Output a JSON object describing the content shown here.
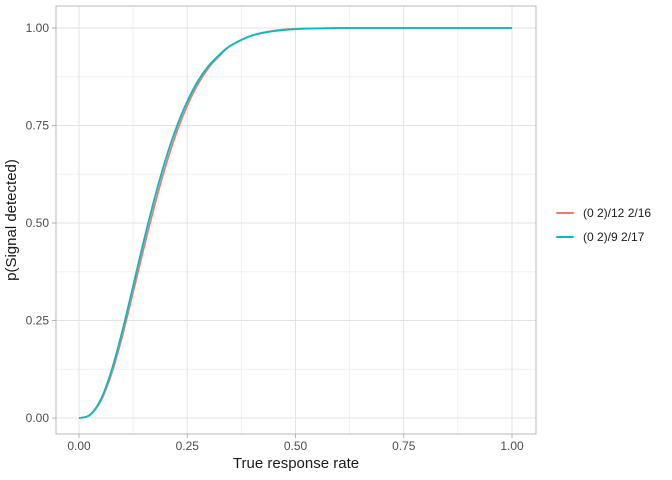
{
  "chart_data": {
    "type": "line",
    "title": "",
    "xlabel": "True response rate",
    "ylabel": "p(Signal detected)",
    "xlim": [
      0,
      1
    ],
    "ylim": [
      0,
      1
    ],
    "grid": "major+minor",
    "legend_position": "right",
    "x_tick_values": [
      0,
      0.25,
      0.5,
      0.75,
      1
    ],
    "x_tick_labels": [
      "0.00",
      "0.25",
      "0.50",
      "0.75",
      "1.00"
    ],
    "y_tick_values": [
      0,
      0.25,
      0.5,
      0.75,
      1
    ],
    "y_tick_labels": [
      "0.00",
      "0.25",
      "0.50",
      "0.75",
      "1.00"
    ],
    "x_minor_gridlines": [
      0.125,
      0.375,
      0.625,
      0.875
    ],
    "y_minor_gridlines": [
      0.125,
      0.375,
      0.625,
      0.875
    ],
    "x": [
      0,
      0.025,
      0.05,
      0.075,
      0.1,
      0.125,
      0.15,
      0.175,
      0.2,
      0.225,
      0.25,
      0.275,
      0.3,
      0.325,
      0.35,
      0.4,
      0.45,
      0.5,
      0.55,
      0.6,
      0.65,
      0.7,
      0.75,
      0.8,
      0.85,
      0.9,
      0.95,
      1.0
    ],
    "series": [
      {
        "name": "(0 2)/12 2/16",
        "color": "#F8766D",
        "values": [
          0,
          0.007,
          0.043,
          0.113,
          0.21,
          0.322,
          0.437,
          0.547,
          0.646,
          0.731,
          0.801,
          0.857,
          0.899,
          0.929,
          0.954,
          0.981,
          0.993,
          0.998,
          0.999,
          1.0,
          1.0,
          1.0,
          1.0,
          1.0,
          1.0,
          1.0,
          1.0,
          1.0
        ]
      },
      {
        "name": "(0 2)/9 2/17",
        "color": "#00BFC4",
        "values": [
          0,
          0.008,
          0.047,
          0.122,
          0.223,
          0.339,
          0.456,
          0.566,
          0.663,
          0.745,
          0.812,
          0.865,
          0.904,
          0.932,
          0.955,
          0.981,
          0.992,
          0.997,
          0.999,
          1.0,
          1.0,
          1.0,
          1.0,
          1.0,
          1.0,
          1.0,
          1.0,
          1.0
        ]
      }
    ],
    "style": {
      "background": "#ffffff",
      "panel_border": "#b8b8b8",
      "grid_major": "#e3e3e3",
      "grid_minor": "#f0f0f0",
      "tick_color": "#b3b3b3",
      "axis_text_color": "#4d4d4d",
      "axis_title_color": "#1a1a1a",
      "legend_text_color": "#1a1a1a"
    }
  }
}
